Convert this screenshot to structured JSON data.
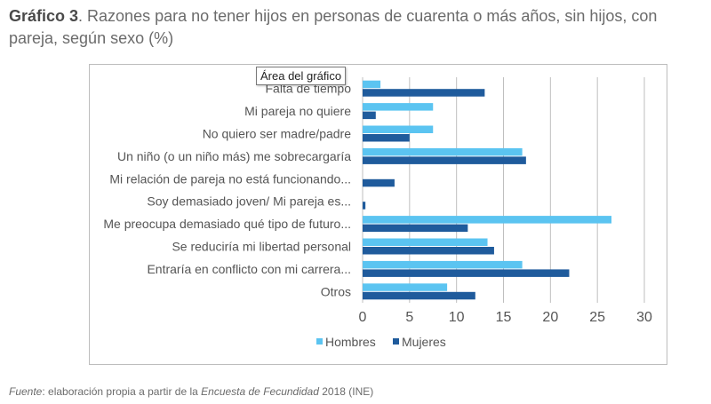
{
  "title": {
    "prefix": "Gráfico 3",
    "text": ". Razones para no tener hijos en personas de cuarenta o más años, sin hijos, con pareja, según sexo (%)"
  },
  "tooltip": "Área del gráfico",
  "source": {
    "label": "Fuente",
    "text1": ": elaboración propia a partir de la ",
    "survey": "Encuesta de Fecundidad",
    "text2": " 2018 (INE)"
  },
  "colors": {
    "hombres": "#5bc4f1",
    "mujeres": "#1f5b9c",
    "grid": "#bfbfbf",
    "text": "#555555"
  },
  "chart_data": {
    "type": "bar",
    "orientation": "horizontal",
    "categories": [
      "Falta de tiempo",
      "Mi pareja no quiere",
      "No quiero ser madre/padre",
      "Un niño (o un niño más) me sobrecargaría",
      "Mi relación de pareja no está funcionando...",
      "Soy demasiado joven/ Mi pareja es...",
      "Me preocupa demasiado qué tipo de futuro...",
      "Se reduciría mi libertad personal",
      "Entraría en conflicto con mi carrera...",
      "Otros"
    ],
    "series": [
      {
        "name": "Hombres",
        "values": [
          1.9,
          7.5,
          7.5,
          17.0,
          0.0,
          0.0,
          26.5,
          13.3,
          17.0,
          9.0
        ]
      },
      {
        "name": "Mujeres",
        "values": [
          13.0,
          1.4,
          5.0,
          17.4,
          3.4,
          0.3,
          11.2,
          14.0,
          22.0,
          12.0
        ]
      }
    ],
    "xlim": [
      0,
      30
    ],
    "xticks": [
      0,
      5,
      10,
      15,
      20,
      25,
      30
    ],
    "grid": true,
    "legend": "bottom"
  }
}
